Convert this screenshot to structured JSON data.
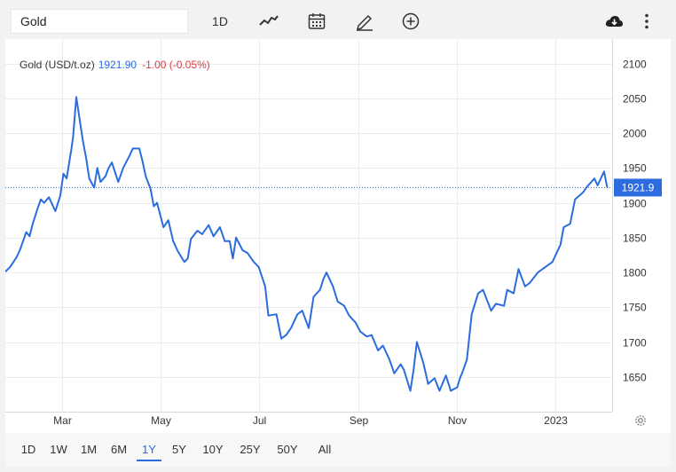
{
  "toolbar": {
    "search_value": "Gold",
    "interval_label": "1D",
    "icons": [
      "line-chart-icon",
      "calendar-icon",
      "pencil-icon",
      "add-circle-icon",
      "download-icon",
      "more-vertical-icon"
    ]
  },
  "quote": {
    "name": "Gold (USD/t.oz)",
    "price": "1921.90",
    "change": "-1.00 (-0.05%)",
    "price_tag": "1921.9",
    "price_color": "#2b6cde",
    "change_color": "#e0393e"
  },
  "ranges": {
    "items": [
      "1D",
      "1W",
      "1M",
      "6M",
      "1Y",
      "5Y",
      "10Y",
      "25Y",
      "50Y",
      "All"
    ],
    "active": "1Y"
  },
  "chart_data": {
    "type": "line",
    "title": "",
    "xlabel": "",
    "ylabel": "",
    "ylim": [
      1600,
      2120
    ],
    "yticks": [
      1650,
      1700,
      1750,
      1800,
      1850,
      1900,
      1950,
      2000,
      2050,
      2100
    ],
    "xticks": [
      {
        "label": "Mar",
        "date": "2022-03-01"
      },
      {
        "label": "May",
        "date": "2022-05-01"
      },
      {
        "label": "Jul",
        "date": "2022-07-01"
      },
      {
        "label": "Sep",
        "date": "2022-09-01"
      },
      {
        "label": "Nov",
        "date": "2022-11-01"
      },
      {
        "label": "2023",
        "date": "2023-01-01"
      }
    ],
    "xlim": [
      "2022-01-25",
      "2023-02-05"
    ],
    "last_value": 1921.9,
    "line_color": "#2b6cde",
    "grid": true,
    "series": [
      {
        "x": [
          "2022-01-25",
          "2022-01-28",
          "2022-02-01",
          "2022-02-03",
          "2022-02-07",
          "2022-02-09",
          "2022-02-11",
          "2022-02-14",
          "2022-02-16",
          "2022-02-18",
          "2022-02-21",
          "2022-02-23",
          "2022-02-25",
          "2022-02-28",
          "2022-03-02",
          "2022-03-04",
          "2022-03-07",
          "2022-03-08",
          "2022-03-10",
          "2022-03-14",
          "2022-03-16",
          "2022-03-18",
          "2022-03-21",
          "2022-03-23",
          "2022-03-25",
          "2022-03-28",
          "2022-03-30",
          "2022-04-01",
          "2022-04-05",
          "2022-04-08",
          "2022-04-12",
          "2022-04-14",
          "2022-04-18",
          "2022-04-20",
          "2022-04-22",
          "2022-04-25",
          "2022-04-27",
          "2022-04-29",
          "2022-05-03",
          "2022-05-06",
          "2022-05-09",
          "2022-05-12",
          "2022-05-16",
          "2022-05-18",
          "2022-05-20",
          "2022-05-24",
          "2022-05-27",
          "2022-05-31",
          "2022-06-03",
          "2022-06-07",
          "2022-06-10",
          "2022-06-13",
          "2022-06-15",
          "2022-06-17",
          "2022-06-21",
          "2022-06-24",
          "2022-06-28",
          "2022-07-01",
          "2022-07-05",
          "2022-07-07",
          "2022-07-12",
          "2022-07-15",
          "2022-07-18",
          "2022-07-21",
          "2022-07-25",
          "2022-07-28",
          "2022-08-01",
          "2022-08-04",
          "2022-08-08",
          "2022-08-10",
          "2022-08-12",
          "2022-08-16",
          "2022-08-19",
          "2022-08-23",
          "2022-08-26",
          "2022-08-30",
          "2022-09-02",
          "2022-09-06",
          "2022-09-09",
          "2022-09-13",
          "2022-09-16",
          "2022-09-20",
          "2022-09-23",
          "2022-09-27",
          "2022-09-29",
          "2022-10-03",
          "2022-10-05",
          "2022-10-07",
          "2022-10-11",
          "2022-10-14",
          "2022-10-18",
          "2022-10-21",
          "2022-10-25",
          "2022-10-28",
          "2022-11-01",
          "2022-11-03",
          "2022-11-04",
          "2022-11-07",
          "2022-11-10",
          "2022-11-14",
          "2022-11-17",
          "2022-11-22",
          "2022-11-25",
          "2022-11-30",
          "2022-12-02",
          "2022-12-06",
          "2022-12-09",
          "2022-12-13",
          "2022-12-16",
          "2022-12-21",
          "2022-12-27",
          "2022-12-30",
          "2023-01-04",
          "2023-01-06",
          "2023-01-10",
          "2023-01-13",
          "2023-01-18",
          "2023-01-20",
          "2023-01-25",
          "2023-01-27",
          "2023-01-31",
          "2023-02-02"
        ],
        "y": [
          1801,
          1808,
          1822,
          1832,
          1858,
          1852,
          1870,
          1892,
          1905,
          1900,
          1908,
          1898,
          1888,
          1910,
          1942,
          1935,
          1978,
          1995,
          2052,
          1990,
          1965,
          1935,
          1922,
          1950,
          1930,
          1938,
          1950,
          1958,
          1930,
          1950,
          1968,
          1978,
          1978,
          1960,
          1938,
          1920,
          1895,
          1900,
          1865,
          1875,
          1845,
          1830,
          1815,
          1820,
          1848,
          1860,
          1855,
          1868,
          1852,
          1865,
          1845,
          1845,
          1820,
          1850,
          1832,
          1828,
          1815,
          1808,
          1780,
          1738,
          1740,
          1705,
          1710,
          1720,
          1740,
          1745,
          1720,
          1765,
          1775,
          1790,
          1800,
          1780,
          1758,
          1752,
          1738,
          1728,
          1715,
          1708,
          1710,
          1688,
          1695,
          1675,
          1655,
          1668,
          1660,
          1630,
          1660,
          1700,
          1670,
          1640,
          1648,
          1630,
          1652,
          1630,
          1635,
          1650,
          1655,
          1675,
          1740,
          1770,
          1775,
          1745,
          1755,
          1752,
          1775,
          1770,
          1805,
          1780,
          1785,
          1800,
          1810,
          1815,
          1840,
          1865,
          1870,
          1905,
          1915,
          1922,
          1935,
          1925,
          1945,
          1922
        ]
      }
    ]
  }
}
